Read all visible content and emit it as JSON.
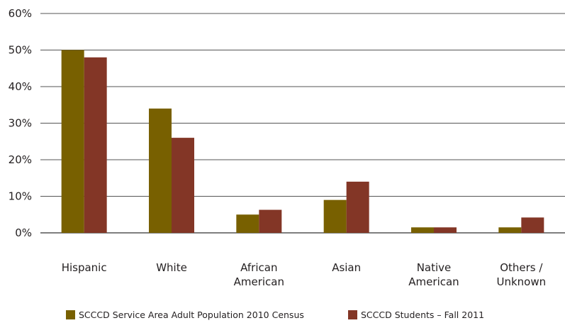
{
  "chart_data": {
    "type": "bar",
    "categories": [
      [
        "Hispanic"
      ],
      [
        "White"
      ],
      [
        "African",
        "American"
      ],
      [
        "Asian"
      ],
      [
        "Native",
        "American"
      ],
      [
        "Others /",
        "Unknown"
      ]
    ],
    "y_ticks": [
      "0%",
      "10%",
      "20%",
      "30%",
      "40%",
      "50%",
      "60%"
    ],
    "ylim": [
      0,
      60
    ],
    "grid": true,
    "legend_position": "bottom",
    "series": [
      {
        "name": "SCCCD Service Area Adult Population 2010 Census",
        "color": "#786000",
        "values": [
          50,
          34,
          5,
          9,
          1.5,
          1.5
        ]
      },
      {
        "name": "SCCCD Students – Fall 2011",
        "color": "#833626",
        "values": [
          48,
          26,
          6.3,
          14,
          1.5,
          4.2
        ]
      }
    ]
  }
}
